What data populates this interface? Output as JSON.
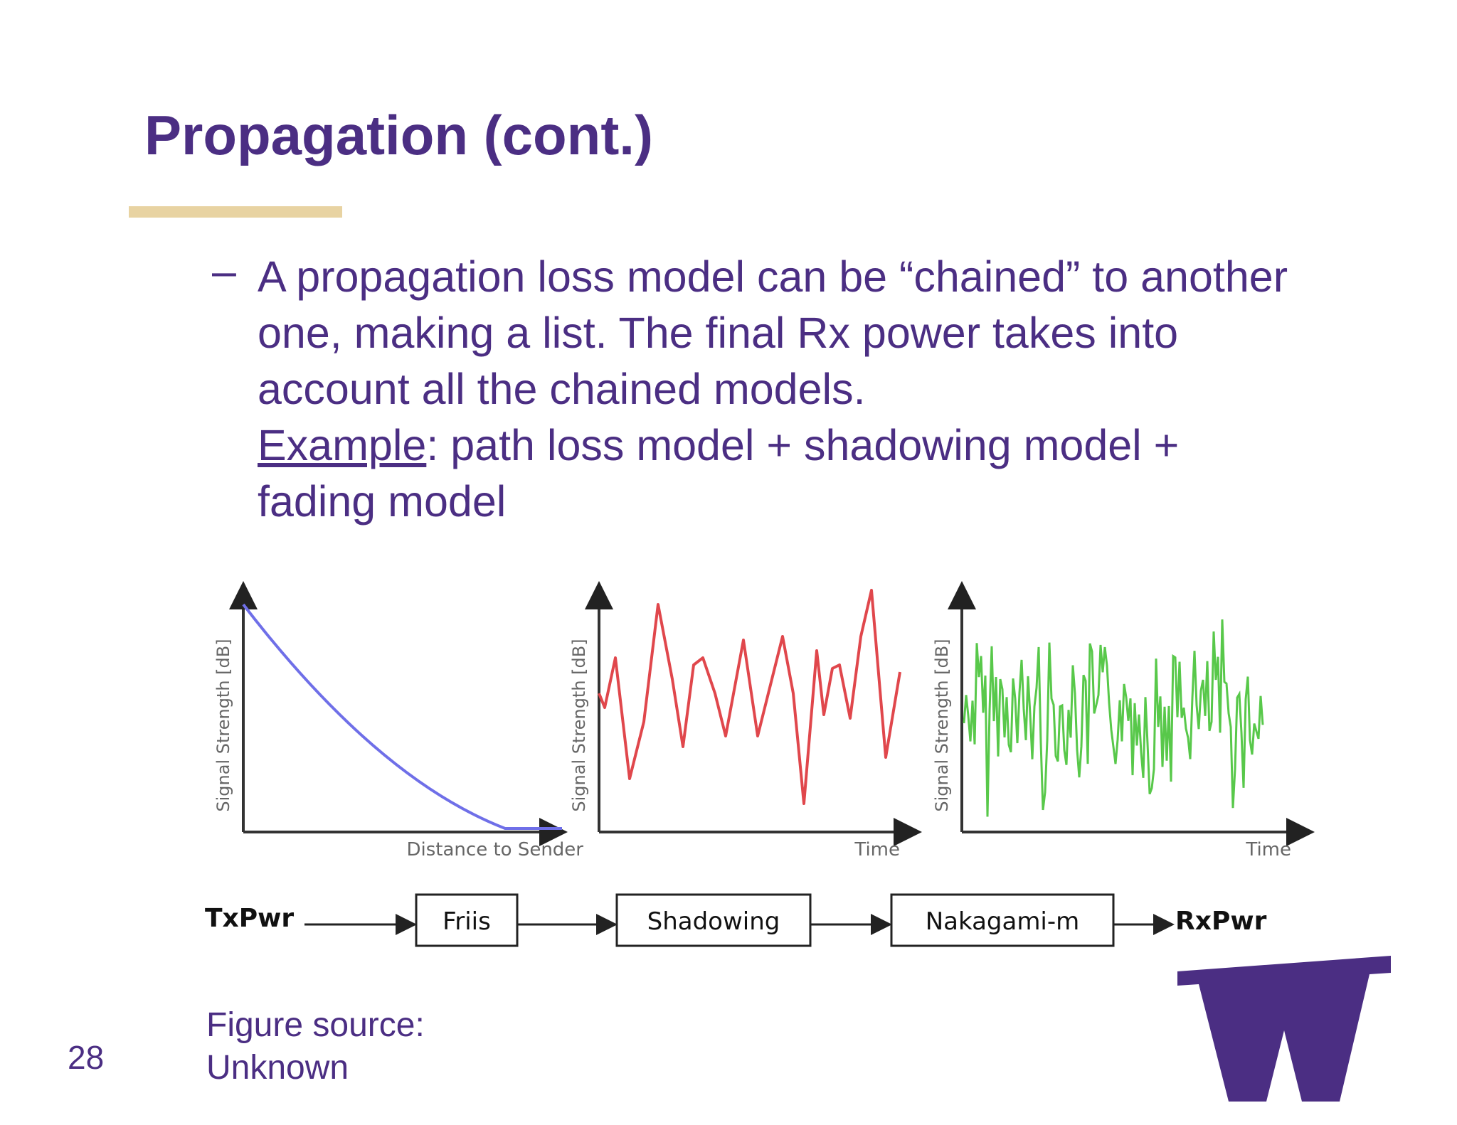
{
  "slide": {
    "title": "Propagation (cont.)",
    "bullet_marker": "–",
    "bullet_lines": [
      "A propagation loss model can be “chained” to another",
      "one, making a list. The final Rx power takes into",
      "account all the chained models."
    ],
    "example_label": "Example",
    "example_rest": ": path loss model + shadowing model +",
    "example_line2": "fading model",
    "caption_line1": "Figure source:",
    "caption_line2": "Unknown",
    "page_number": "28",
    "title_rule_color": "#e8d3a2",
    "text_color": "#4b2e83"
  },
  "figure": {
    "plots": [
      {
        "ylabel": "Signal Strength [dB]",
        "xlabel": "Distance to Sender",
        "color": "#6f6fe8"
      },
      {
        "ylabel": "Signal Strength [dB]",
        "xlabel": "Time",
        "color": "#e0474c"
      },
      {
        "ylabel": "Signal Strength [dB]",
        "xlabel": "Time",
        "color": "#58c84a"
      }
    ],
    "chain": {
      "start": "TxPwr",
      "blocks": [
        "Friis",
        "Shadowing",
        "Nakagami-m"
      ],
      "end": "RxPwr"
    }
  },
  "logo": {
    "name": "uw-w-logo",
    "letter": "W",
    "color": "#4b2e83"
  }
}
